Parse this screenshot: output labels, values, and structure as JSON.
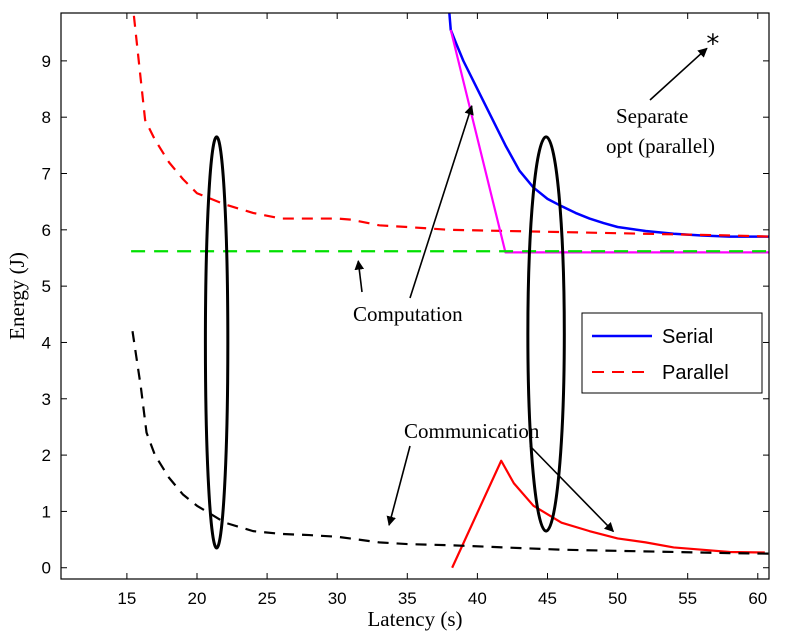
{
  "chart_data": {
    "type": "line",
    "title": "",
    "xlabel": "Latency (s)",
    "ylabel": "Energy (J)",
    "xlim": [
      10.3,
      60.8
    ],
    "ylim": [
      -0.2,
      9.85
    ],
    "xticks": [
      15,
      20,
      25,
      30,
      35,
      40,
      45,
      50,
      55,
      60
    ],
    "yticks": [
      0,
      1,
      2,
      3,
      4,
      5,
      6,
      7,
      8,
      9
    ],
    "grid": false,
    "legend": {
      "position": "center-right",
      "entries": [
        "Serial",
        "Parallel"
      ]
    },
    "series": [
      {
        "name": "Serial",
        "role": "total",
        "color": "#0000ff",
        "style": "solid",
        "x": [
          38,
          38.1,
          38.5,
          39,
          40,
          41,
          42,
          43,
          44,
          45,
          46,
          47,
          48,
          49,
          50,
          52,
          54,
          56,
          58,
          60.8
        ],
        "y": [
          9.85,
          9.55,
          9.3,
          9.0,
          8.5,
          8.0,
          7.5,
          7.05,
          6.75,
          6.55,
          6.42,
          6.3,
          6.2,
          6.12,
          6.05,
          5.98,
          5.93,
          5.9,
          5.88,
          5.88
        ]
      },
      {
        "name": "Parallel",
        "role": "total",
        "color": "#ff0000",
        "style": "dashed",
        "x": [
          15.5,
          16.3,
          17,
          18,
          19,
          20,
          22,
          24,
          26,
          28,
          30,
          31,
          33,
          35,
          38,
          42,
          46,
          50,
          54,
          58,
          60.8
        ],
        "y": [
          9.8,
          7.95,
          7.6,
          7.2,
          6.9,
          6.65,
          6.45,
          6.3,
          6.2,
          6.2,
          6.2,
          6.18,
          6.08,
          6.05,
          6.0,
          5.98,
          5.96,
          5.94,
          5.92,
          5.9,
          5.88
        ]
      },
      {
        "name": "Serial",
        "role": "computation",
        "color": "#ff00ff",
        "style": "solid",
        "x": [
          38.1,
          42,
          60.8
        ],
        "y": [
          9.55,
          5.6,
          5.6
        ]
      },
      {
        "name": "Parallel",
        "role": "computation",
        "color": "#00e000",
        "style": "dashed",
        "x": [
          15.3,
          60.8
        ],
        "y": [
          5.62,
          5.62
        ]
      },
      {
        "name": "Serial",
        "role": "communication",
        "color": "#ff0000",
        "style": "solid",
        "x": [
          38.2,
          41.7,
          42.6,
          44,
          46,
          48,
          50,
          52,
          54,
          56,
          58,
          60.5
        ],
        "y": [
          0.0,
          1.9,
          1.5,
          1.1,
          0.8,
          0.65,
          0.52,
          0.45,
          0.36,
          0.32,
          0.28,
          0.27
        ]
      },
      {
        "name": "Parallel",
        "role": "communication",
        "color": "#000000",
        "style": "dashed",
        "x": [
          15.4,
          16,
          16.4,
          17,
          18,
          19,
          20,
          22,
          24,
          26,
          28,
          30,
          33,
          35,
          38,
          42,
          46,
          50,
          54,
          58,
          60.8
        ],
        "y": [
          4.2,
          3.2,
          2.4,
          2.0,
          1.6,
          1.3,
          1.1,
          0.8,
          0.65,
          0.6,
          0.58,
          0.55,
          0.45,
          0.42,
          0.4,
          0.36,
          0.32,
          0.3,
          0.28,
          0.26,
          0.25
        ]
      }
    ],
    "points": [
      {
        "label": "Separate opt (parallel)",
        "marker": "*",
        "x": 56.8,
        "y": 9.4
      }
    ],
    "annotations": [
      {
        "text": "Separate opt (parallel)",
        "lines": [
          "Separate",
          "opt (parallel)"
        ],
        "points_to": [
          56.8,
          9.4
        ]
      },
      {
        "text": "Computation",
        "points_to": [
          [
            31.5,
            5.5
          ],
          [
            39.6,
            8.2
          ]
        ]
      },
      {
        "text": "Communication",
        "points_to": [
          [
            33.7,
            0.65
          ],
          [
            49.7,
            0.75
          ]
        ]
      }
    ],
    "ellipses": [
      {
        "x_range": [
          20.6,
          22.2
        ],
        "y_range": [
          0.35,
          7.65
        ]
      },
      {
        "x_range": [
          43.6,
          46.2
        ],
        "y_range": [
          0.65,
          7.65
        ]
      }
    ]
  }
}
